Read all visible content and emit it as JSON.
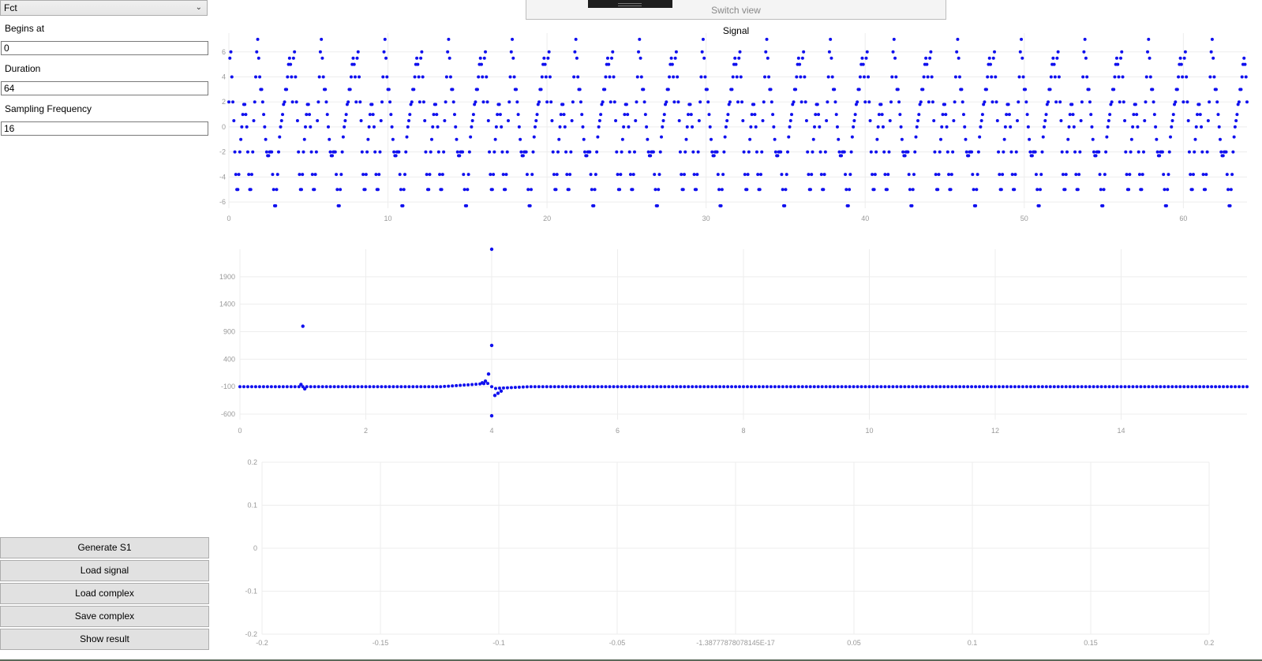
{
  "sidebar": {
    "function_select": "Fct",
    "begins_label": "Begins at",
    "begins_value": "0",
    "duration_label": "Duration",
    "duration_value": "64",
    "freq_label": "Sampling Frequency",
    "freq_value": "16",
    "buttons": [
      "Generate S1",
      "Load signal",
      "Load complex",
      "Save complex",
      "Show result"
    ]
  },
  "top_panel": {
    "switch_label": "Switch view"
  },
  "colors": {
    "points": "#1010ee",
    "grid": "#ededed",
    "tick": "#999999",
    "button": "#e1e1e1"
  },
  "chart_data": [
    {
      "type": "scatter",
      "title": "Signal",
      "period": 2,
      "sample_step": 0.0625,
      "pattern_y": [
        2,
        5.5,
        6,
        4,
        2,
        0.5,
        -2,
        -3.8,
        -5,
        -5,
        -3.8,
        -2,
        -1,
        0,
        1,
        1.8,
        1.8,
        1,
        0,
        -2,
        -3.8,
        -5,
        -5,
        -3.8,
        -2,
        0.5,
        2,
        4,
        6,
        7,
        5.5,
        4,
        3,
        3,
        2,
        1,
        0,
        -1,
        -2,
        -2.3,
        -2.3,
        -2,
        -2,
        -2,
        -3.8,
        -5,
        -6.3,
        -6.3,
        -5,
        -3.8,
        -2,
        -0.8,
        0,
        0.5,
        1,
        1.8,
        2,
        3,
        3,
        4,
        5,
        5.5,
        5,
        4
      ],
      "x_ticks": [
        0,
        10,
        20,
        30,
        40,
        50,
        60
      ],
      "y_ticks": [
        6,
        4,
        2,
        0,
        -2,
        -4,
        -6
      ],
      "xlim": [
        0,
        64
      ],
      "ylim": [
        -6.5,
        7.5
      ]
    },
    {
      "type": "scatter",
      "title": "",
      "baseline": -100,
      "spikes": [
        {
          "x": 1.0,
          "y": 1000
        },
        {
          "x": 0.97,
          "y": -60
        },
        {
          "x": 1.03,
          "y": -140
        },
        {
          "x": 4.0,
          "y": 2400
        },
        {
          "x": 4.0,
          "y": 650
        },
        {
          "x": 4.0,
          "y": -630
        },
        {
          "x": 3.95,
          "y": 130
        },
        {
          "x": 3.9,
          "y": 0
        },
        {
          "x": 3.85,
          "y": -30
        },
        {
          "x": 4.05,
          "y": -260
        },
        {
          "x": 4.1,
          "y": -220
        },
        {
          "x": 4.15,
          "y": -180
        }
      ],
      "x_ticks": [
        0,
        2,
        4,
        6,
        8,
        10,
        12,
        14
      ],
      "y_ticks": [
        1900,
        1400,
        900,
        400,
        -100,
        -600
      ],
      "xlim": [
        0,
        16
      ],
      "ylim": [
        -700,
        2400
      ]
    },
    {
      "type": "scatter",
      "title": "",
      "x_ticks": [
        "-0.2",
        "-0.15",
        "-0.1",
        "-0.05",
        "-1.38777878078145E-17",
        "0.05",
        "0.1",
        "0.15",
        "0.2"
      ],
      "y_ticks": [
        "0.2",
        "0.1",
        "0",
        "-0.1",
        "-0.2"
      ],
      "xlim": [
        -0.2,
        0.2
      ],
      "ylim": [
        -0.2,
        0.2
      ]
    }
  ]
}
